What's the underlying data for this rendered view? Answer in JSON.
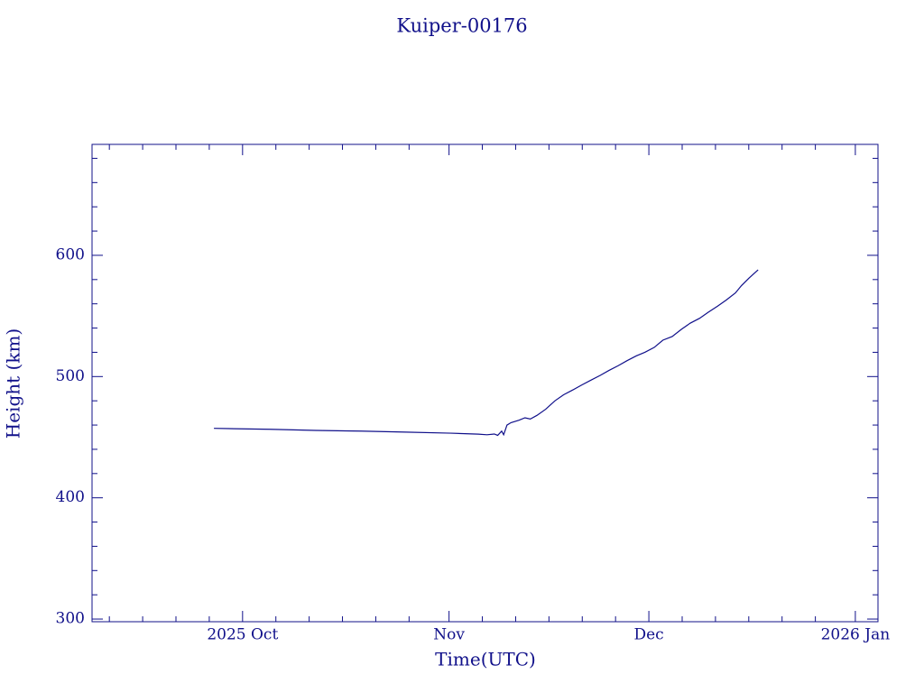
{
  "chart_data": {
    "type": "line",
    "title": "Kuiper-00176",
    "x_label": "Time(UTC)",
    "y_label": "Height (km)",
    "color": "#10108a",
    "xlim": [
      -22.6,
      95.4
    ],
    "xticks": [
      {
        "value": 0,
        "label": "2025 Oct"
      },
      {
        "value": 31,
        "label": "Nov"
      },
      {
        "value": 61,
        "label": "Dec"
      },
      {
        "value": 92,
        "label": "2026 Jan"
      }
    ],
    "xminorticks": [
      -20,
      -15,
      -10,
      -5,
      5,
      10,
      15,
      20,
      25,
      36,
      41,
      46,
      51,
      56,
      66,
      71,
      76,
      81,
      86
    ],
    "ylim": [
      297.8,
      691.5
    ],
    "yticks": [
      300,
      400,
      500,
      600
    ],
    "yminorticks": [
      320,
      340,
      360,
      380,
      420,
      440,
      460,
      480,
      520,
      540,
      560,
      580,
      620,
      640,
      660,
      680
    ],
    "x": [
      -4.3,
      -1.2,
      4.2,
      11.0,
      17.8,
      24.5,
      31.3,
      35.4,
      36.7,
      37.8,
      38.3,
      38.9,
      39.2,
      39.7,
      40.3,
      41.5,
      42.4,
      43.2,
      44.2,
      45.5,
      46.9,
      48.2,
      49.6,
      50.9,
      52.3,
      53.7,
      55.0,
      56.4,
      57.7,
      59.1,
      60.4,
      61.8,
      63.1,
      64.5,
      65.9,
      67.2,
      68.6,
      69.9,
      71.3,
      72.6,
      74.0,
      74.9,
      76.0,
      76.8,
      77.4
    ],
    "values": [
      457.3,
      457,
      456.5,
      455.6,
      455,
      454.2,
      453.3,
      452.5,
      452,
      452.6,
      451.5,
      455,
      452,
      460,
      462,
      464,
      466,
      465,
      468,
      473,
      480,
      485,
      489,
      493,
      497,
      501,
      505,
      509,
      513,
      517,
      520,
      524,
      530,
      533,
      539,
      544,
      548,
      553,
      558,
      563,
      569,
      575,
      581,
      585,
      588
    ]
  }
}
